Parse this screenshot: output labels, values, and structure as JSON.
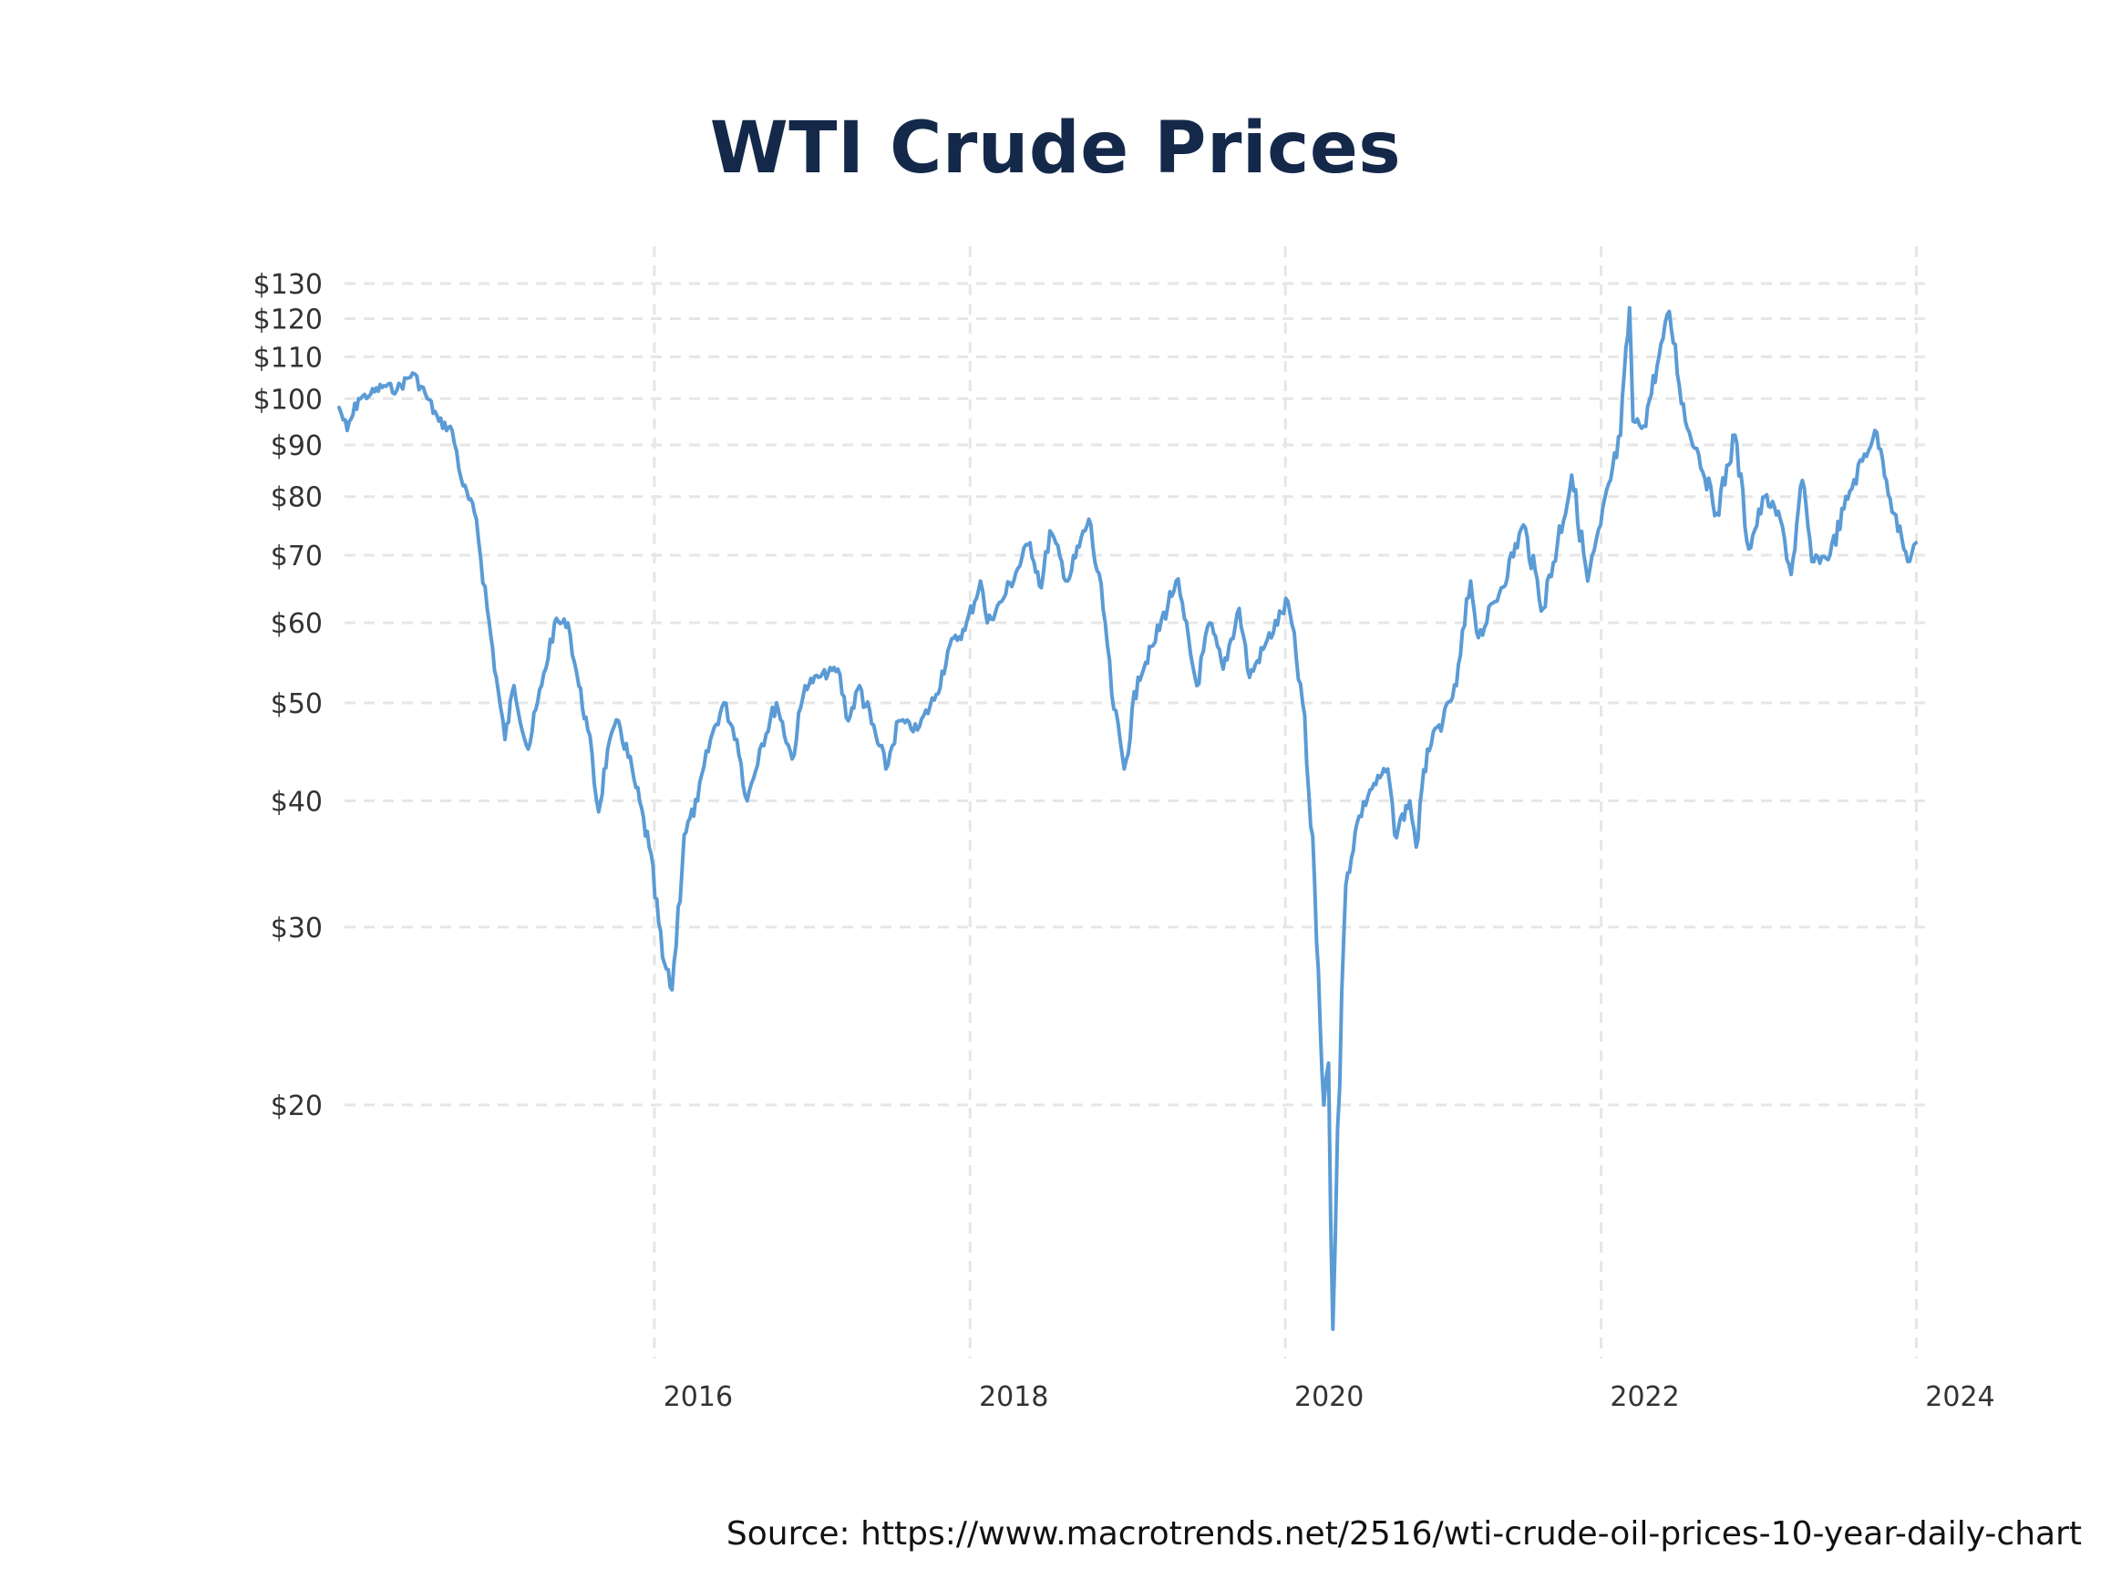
{
  "source_note": "Source: https://www.macrotrends.net/2516/wti-crude-oil-prices-10-year-daily-chart",
  "colors": {
    "title": "#14294a",
    "series_line": "#5b9bd5",
    "grid": "#e6e6e6",
    "tick_text": "#333333"
  },
  "chart_data": {
    "type": "line",
    "title": "WTI Crude Prices",
    "xlabel": "",
    "ylabel": "",
    "y_scale": "log",
    "ylim": [
      11,
      135
    ],
    "xlim": [
      "2014-01-01",
      "2023-12-31"
    ],
    "grid": true,
    "legend": "none",
    "y_ticks": [
      {
        "value": 130,
        "label": "$130"
      },
      {
        "value": 120,
        "label": "$120"
      },
      {
        "value": 110,
        "label": "$110"
      },
      {
        "value": 100,
        "label": "$100"
      },
      {
        "value": 90,
        "label": "$90"
      },
      {
        "value": 80,
        "label": "$80"
      },
      {
        "value": 70,
        "label": "$70"
      },
      {
        "value": 60,
        "label": "$60"
      },
      {
        "value": 50,
        "label": "$50"
      },
      {
        "value": 40,
        "label": "$40"
      },
      {
        "value": 30,
        "label": "$30"
      },
      {
        "value": 20,
        "label": "$20"
      }
    ],
    "x_ticks": [
      {
        "value": "2016-01-01",
        "label": "2016"
      },
      {
        "value": "2018-01-01",
        "label": "2018"
      },
      {
        "value": "2020-01-01",
        "label": "2020"
      },
      {
        "value": "2022-01-01",
        "label": "2022"
      },
      {
        "value": "2024-01-01",
        "label": "2024"
      }
    ],
    "series": [
      {
        "points": [
          [
            "2014-01-01",
            98
          ],
          [
            "2014-01-20",
            93
          ],
          [
            "2014-02-15",
            100
          ],
          [
            "2014-03-15",
            101
          ],
          [
            "2014-04-15",
            103
          ],
          [
            "2014-05-15",
            102
          ],
          [
            "2014-06-20",
            106
          ],
          [
            "2014-07-20",
            101
          ],
          [
            "2014-08-20",
            95
          ],
          [
            "2014-09-20",
            93
          ],
          [
            "2014-10-15",
            82
          ],
          [
            "2014-11-15",
            76
          ],
          [
            "2014-12-10",
            62
          ],
          [
            "2014-12-31",
            53
          ],
          [
            "2015-01-20",
            46
          ],
          [
            "2015-02-10",
            52
          ],
          [
            "2015-03-15",
            45
          ],
          [
            "2015-04-15",
            52
          ],
          [
            "2015-05-15",
            60
          ],
          [
            "2015-06-15",
            60
          ],
          [
            "2015-07-10",
            52
          ],
          [
            "2015-07-31",
            47
          ],
          [
            "2015-08-25",
            39
          ],
          [
            "2015-09-15",
            45
          ],
          [
            "2015-10-10",
            48
          ],
          [
            "2015-11-15",
            42
          ],
          [
            "2015-12-20",
            36
          ],
          [
            "2016-01-20",
            28
          ],
          [
            "2016-02-11",
            26
          ],
          [
            "2016-03-10",
            37
          ],
          [
            "2016-04-10",
            40
          ],
          [
            "2016-05-10",
            46
          ],
          [
            "2016-06-10",
            50
          ],
          [
            "2016-07-10",
            46
          ],
          [
            "2016-08-03",
            40
          ],
          [
            "2016-09-01",
            45
          ],
          [
            "2016-10-10",
            50
          ],
          [
            "2016-11-15",
            44
          ],
          [
            "2016-12-15",
            52
          ],
          [
            "2017-01-15",
            53
          ],
          [
            "2017-03-01",
            54
          ],
          [
            "2017-03-25",
            48
          ],
          [
            "2017-04-20",
            52
          ],
          [
            "2017-06-20",
            43
          ],
          [
            "2017-07-20",
            48
          ],
          [
            "2017-09-01",
            47
          ],
          [
            "2017-10-15",
            51
          ],
          [
            "2017-11-15",
            57
          ],
          [
            "2017-12-20",
            59
          ],
          [
            "2018-01-25",
            66
          ],
          [
            "2018-02-10",
            60
          ],
          [
            "2018-03-15",
            63
          ],
          [
            "2018-05-20",
            72
          ],
          [
            "2018-06-15",
            65
          ],
          [
            "2018-07-05",
            74
          ],
          [
            "2018-08-15",
            66
          ],
          [
            "2018-10-03",
            76
          ],
          [
            "2018-11-10",
            60
          ],
          [
            "2018-11-25",
            51
          ],
          [
            "2018-12-24",
            43
          ],
          [
            "2019-01-25",
            53
          ],
          [
            "2019-03-01",
            57
          ],
          [
            "2019-04-23",
            66
          ],
          [
            "2019-06-10",
            52
          ],
          [
            "2019-07-10",
            60
          ],
          [
            "2019-08-10",
            54
          ],
          [
            "2019-09-16",
            62
          ],
          [
            "2019-10-10",
            53
          ],
          [
            "2019-11-15",
            57
          ],
          [
            "2020-01-07",
            63
          ],
          [
            "2020-02-10",
            50
          ],
          [
            "2020-03-09",
            33
          ],
          [
            "2020-03-30",
            20
          ],
          [
            "2020-04-10",
            22
          ],
          [
            "2020-04-20",
            12
          ],
          [
            "2020-05-01",
            19
          ],
          [
            "2020-05-20",
            33
          ],
          [
            "2020-06-15",
            38
          ],
          [
            "2020-07-15",
            41
          ],
          [
            "2020-08-25",
            43
          ],
          [
            "2020-09-10",
            37
          ],
          [
            "2020-10-15",
            40
          ],
          [
            "2020-10-30",
            36
          ],
          [
            "2020-11-25",
            45
          ],
          [
            "2020-12-31",
            48
          ],
          [
            "2021-01-31",
            52
          ],
          [
            "2021-03-05",
            66
          ],
          [
            "2021-03-23",
            58
          ],
          [
            "2021-05-15",
            65
          ],
          [
            "2021-07-05",
            75
          ],
          [
            "2021-08-20",
            62
          ],
          [
            "2021-10-25",
            84
          ],
          [
            "2021-12-01",
            66
          ],
          [
            "2021-12-31",
            75
          ],
          [
            "2022-02-15",
            92
          ],
          [
            "2022-03-08",
            123
          ],
          [
            "2022-03-16",
            95
          ],
          [
            "2022-04-10",
            94
          ],
          [
            "2022-05-15",
            110
          ],
          [
            "2022-06-08",
            122
          ],
          [
            "2022-07-15",
            95
          ],
          [
            "2022-08-15",
            88
          ],
          [
            "2022-09-26",
            77
          ],
          [
            "2022-11-07",
            92
          ],
          [
            "2022-12-09",
            71
          ],
          [
            "2023-01-15",
            80
          ],
          [
            "2023-02-20",
            76
          ],
          [
            "2023-03-17",
            67
          ],
          [
            "2023-04-12",
            83
          ],
          [
            "2023-05-04",
            69
          ],
          [
            "2023-06-15",
            70
          ],
          [
            "2023-07-31",
            81
          ],
          [
            "2023-09-27",
            93
          ],
          [
            "2023-10-15",
            87
          ],
          [
            "2023-11-10",
            77
          ],
          [
            "2023-12-12",
            69
          ],
          [
            "2023-12-31",
            72
          ]
        ]
      }
    ]
  }
}
